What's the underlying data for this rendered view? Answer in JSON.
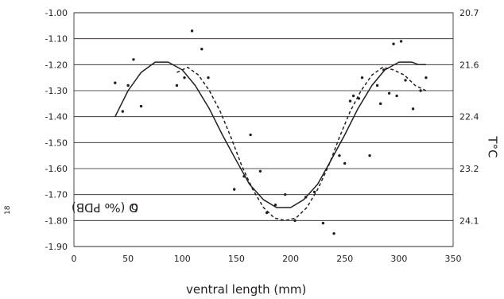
{
  "chart_data": {
    "type": "scatter",
    "xlabel": "ventral length (mm)",
    "ylabel": "δ18O (‰ PDB)",
    "ylabel_parts": {
      "symbol": "δ",
      "superscript": "18",
      "rest": "O (‰ PDB)"
    },
    "y2label": "T°C",
    "xlim": [
      0,
      350
    ],
    "ylim": [
      -1.9,
      -1.0
    ],
    "x_ticks": [
      0,
      50,
      100,
      150,
      200,
      250,
      300,
      350
    ],
    "y_ticks": [
      -1.9,
      -1.8,
      -1.7,
      -1.6,
      -1.5,
      -1.4,
      -1.3,
      -1.2,
      -1.1,
      -1.0
    ],
    "y_tick_labels": [
      "-1.90",
      "-1.80",
      "-1.70",
      "-1.60",
      "-1.50",
      "-1.40",
      "-1.30",
      "-1.20",
      "-1.10",
      "-1.00"
    ],
    "y2_ticks": [
      {
        "label": "20.7",
        "at_y": -1.0
      },
      {
        "label": "21.6",
        "at_y": -1.2
      },
      {
        "label": "22.4",
        "at_y": -1.4
      },
      {
        "label": "23.2",
        "at_y": -1.6
      },
      {
        "label": "24.1",
        "at_y": -1.8
      }
    ],
    "grid": "horizontal",
    "series": [
      {
        "style": "points",
        "x": [
          38,
          45,
          50,
          55,
          62,
          95,
          102,
          109,
          118,
          124,
          148,
          157,
          163,
          172,
          178,
          186,
          195,
          204,
          214,
          222,
          230,
          240,
          245,
          250,
          255,
          258,
          263,
          266,
          273,
          280,
          283,
          286,
          291,
          295,
          298,
          302,
          306,
          313,
          320,
          325
        ],
        "y": [
          -1.27,
          -1.38,
          -1.28,
          -1.18,
          -1.36,
          -1.28,
          -1.25,
          -1.07,
          -1.14,
          -1.25,
          -1.68,
          -1.63,
          -1.47,
          -1.61,
          -1.77,
          -1.74,
          -1.7,
          -1.8,
          -1.71,
          -1.69,
          -1.81,
          -1.85,
          -1.55,
          -1.58,
          -1.34,
          -1.32,
          -1.33,
          -1.25,
          -1.55,
          -1.28,
          -1.35,
          -1.22,
          -1.31,
          -1.12,
          -1.32,
          -1.11,
          -1.26,
          -1.37,
          -1.3,
          -1.25
        ]
      },
      {
        "style": "solid",
        "x": [
          38,
          50,
          62,
          75,
          87,
          100,
          112,
          125,
          137,
          150,
          162,
          175,
          187,
          200,
          212,
          225,
          237,
          250,
          262,
          275,
          287,
          300,
          312,
          318,
          325
        ],
        "y": [
          -1.4,
          -1.3,
          -1.23,
          -1.19,
          -1.19,
          -1.22,
          -1.28,
          -1.37,
          -1.47,
          -1.57,
          -1.66,
          -1.72,
          -1.75,
          -1.75,
          -1.72,
          -1.66,
          -1.57,
          -1.47,
          -1.37,
          -1.28,
          -1.22,
          -1.19,
          -1.19,
          -1.2,
          -1.2
        ]
      },
      {
        "style": "dashed",
        "x": [
          95,
          105,
          115,
          125,
          135,
          145,
          155,
          165,
          175,
          185,
          195,
          205,
          215,
          225,
          235,
          245,
          255,
          265,
          275,
          285,
          295,
          305,
          315,
          325
        ],
        "y": [
          -1.23,
          -1.21,
          -1.24,
          -1.3,
          -1.38,
          -1.48,
          -1.59,
          -1.68,
          -1.75,
          -1.79,
          -1.8,
          -1.79,
          -1.75,
          -1.68,
          -1.59,
          -1.48,
          -1.38,
          -1.3,
          -1.24,
          -1.21,
          -1.22,
          -1.24,
          -1.28,
          -1.3
        ]
      }
    ]
  }
}
